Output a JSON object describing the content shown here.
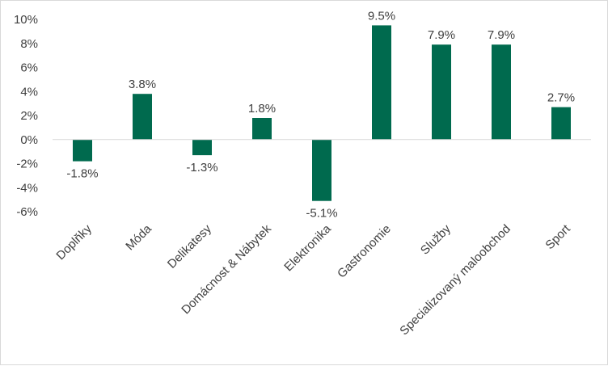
{
  "chart_data": {
    "type": "bar",
    "title": "",
    "xlabel": "",
    "ylabel": "",
    "categories": [
      "Doplňky",
      "Móda",
      "Delikatesy",
      "Domácnost & Nábytek",
      "Elektronika",
      "Gastronomie",
      "Služby",
      "Specializovaný maloobchod",
      "Sport"
    ],
    "values": [
      -1.8,
      3.8,
      -1.3,
      1.8,
      -5.1,
      9.5,
      7.9,
      7.9,
      2.7
    ],
    "value_labels": [
      "-1.8%",
      "3.8%",
      "-1.3%",
      "1.8%",
      "-5.1%",
      "9.5%",
      "7.9%",
      "7.9%",
      "2.7%"
    ],
    "y_ticks": [
      10,
      8,
      6,
      4,
      2,
      0,
      -2,
      -4,
      -6
    ],
    "y_tick_labels": [
      "10%",
      "8%",
      "6%",
      "4%",
      "2%",
      "0%",
      "-2%",
      "-4%",
      "-6%"
    ],
    "ylim": [
      -6,
      10
    ],
    "grid": false,
    "legend": "none",
    "bar_color": "#006A4E",
    "axis_color": "#d9d9d9"
  }
}
